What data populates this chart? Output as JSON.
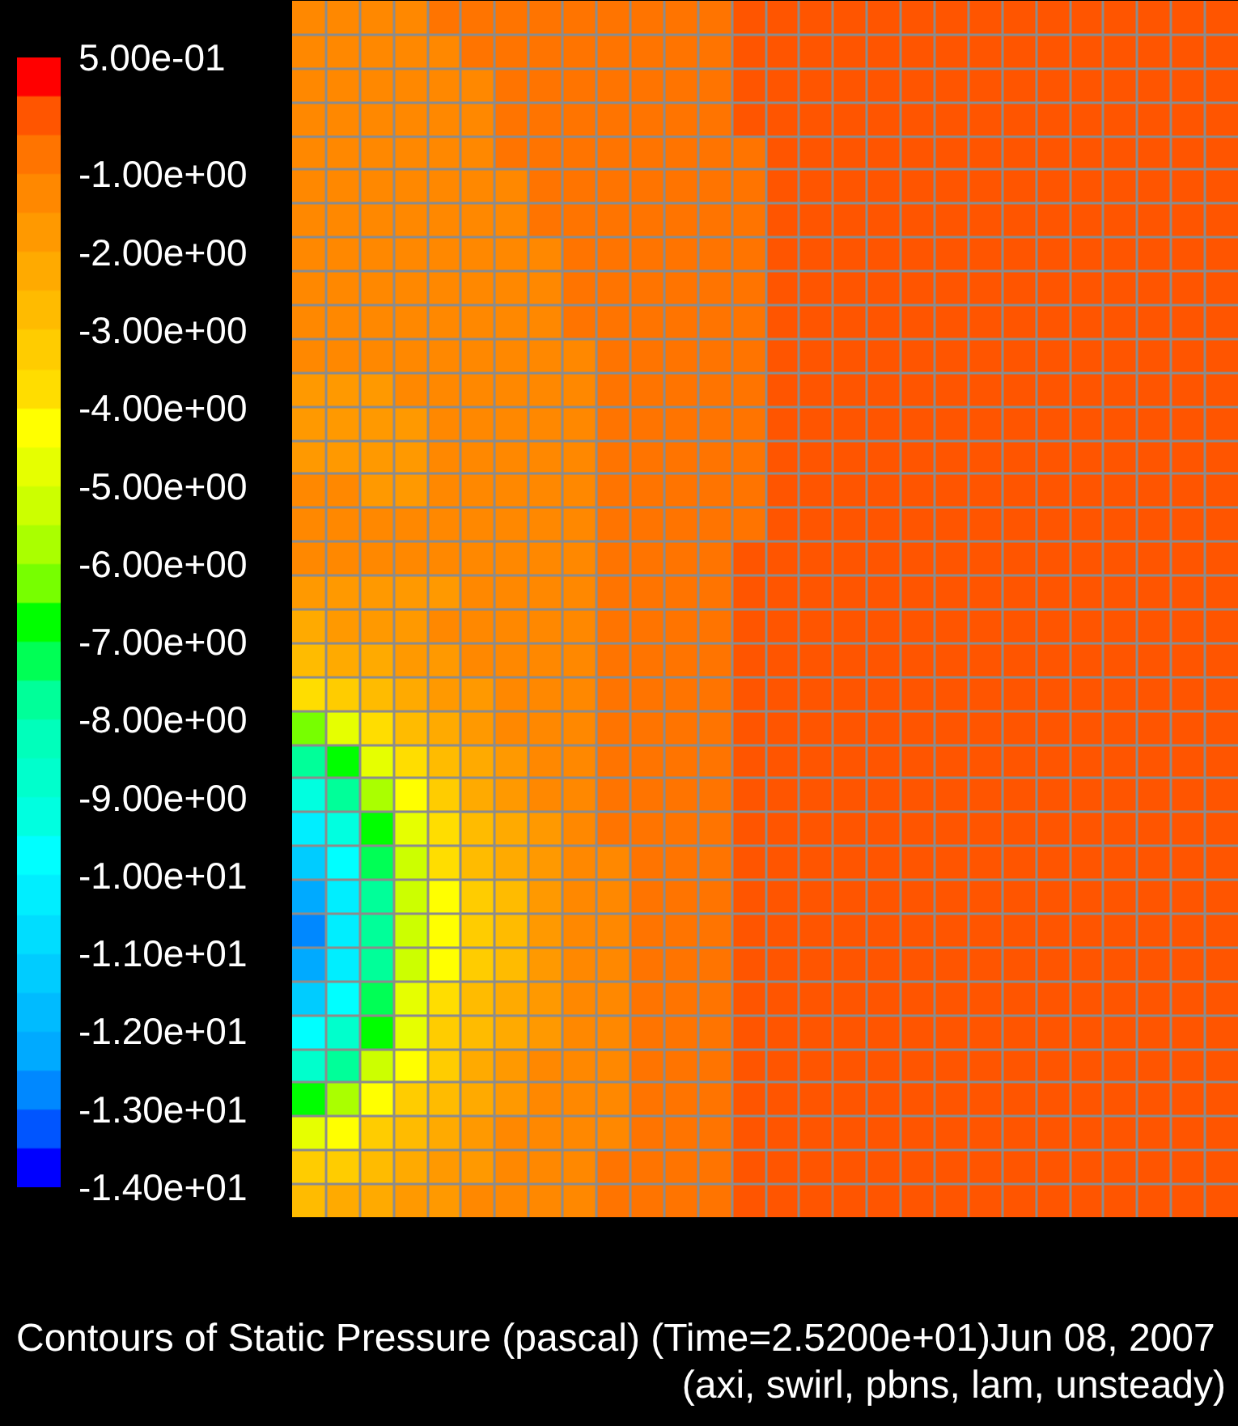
{
  "chart_data": {
    "type": "heatmap",
    "title": "Contours of Static Pressure (pascal)  (Time=2.5200e+01)Jun 08, 2007",
    "subtitle": "(axi, swirl, pbns, lam, unsteady)",
    "categories": [
      null,
      null,
      null,
      null,
      null,
      null,
      null,
      null,
      null,
      null,
      null,
      null,
      null,
      null,
      null,
      null,
      null,
      null,
      null,
      null,
      null,
      null,
      null,
      null,
      null,
      null,
      null,
      null
    ],
    "y_categories": [
      null,
      null,
      null,
      null,
      null,
      null,
      null,
      null,
      null,
      null,
      null,
      null,
      null,
      null,
      null,
      null,
      null,
      null,
      null,
      null,
      null,
      null,
      null,
      null,
      null,
      null,
      null,
      null,
      null,
      null,
      null,
      null,
      null,
      null,
      null,
      null
    ],
    "cells": [
      [
        -1.2,
        -1.2,
        -1.2,
        -1.2,
        -0.7,
        -0.7,
        -0.7,
        -0.7,
        -0.7,
        -0.7,
        -0.7,
        -0.7,
        -0.7,
        -0.2,
        -0.2,
        -0.2,
        -0.2,
        -0.2,
        -0.2,
        -0.2,
        -0.2,
        -0.2,
        -0.2,
        -0.2,
        -0.2,
        -0.2,
        -0.2,
        -0.2
      ],
      [
        -1.2,
        -1.2,
        -1.2,
        -1.2,
        -1.2,
        -0.7,
        -0.7,
        -0.7,
        -0.7,
        -0.7,
        -0.7,
        -0.7,
        -0.7,
        -0.2,
        -0.2,
        -0.2,
        -0.2,
        -0.2,
        -0.2,
        -0.2,
        -0.2,
        -0.2,
        -0.2,
        -0.2,
        -0.2,
        -0.2,
        -0.2,
        -0.2
      ],
      [
        -1.2,
        -1.2,
        -1.2,
        -1.2,
        -1.2,
        -1.2,
        -0.7,
        -0.7,
        -0.7,
        -0.7,
        -0.7,
        -0.7,
        -0.7,
        -0.2,
        -0.2,
        -0.2,
        -0.2,
        -0.2,
        -0.2,
        -0.2,
        -0.2,
        -0.2,
        -0.2,
        -0.2,
        -0.2,
        -0.2,
        -0.2,
        -0.2
      ],
      [
        -1.2,
        -1.2,
        -1.2,
        -1.2,
        -1.2,
        -1.2,
        -0.7,
        -0.7,
        -0.7,
        -0.7,
        -0.7,
        -0.7,
        -0.7,
        -0.2,
        -0.2,
        -0.2,
        -0.2,
        -0.2,
        -0.2,
        -0.2,
        -0.2,
        -0.2,
        -0.2,
        -0.2,
        -0.2,
        -0.2,
        -0.2,
        -0.2
      ],
      [
        -1.2,
        -1.2,
        -1.2,
        -1.2,
        -1.2,
        -1.2,
        -0.7,
        -0.7,
        -0.7,
        -0.7,
        -0.7,
        -0.7,
        -0.7,
        -0.7,
        -0.2,
        -0.2,
        -0.2,
        -0.2,
        -0.2,
        -0.2,
        -0.2,
        -0.2,
        -0.2,
        -0.2,
        -0.2,
        -0.2,
        -0.2,
        -0.2
      ],
      [
        -1.2,
        -1.2,
        -1.2,
        -1.2,
        -1.2,
        -1.2,
        -1.2,
        -0.7,
        -0.7,
        -0.7,
        -0.7,
        -0.7,
        -0.7,
        -0.7,
        -0.2,
        -0.2,
        -0.2,
        -0.2,
        -0.2,
        -0.2,
        -0.2,
        -0.2,
        -0.2,
        -0.2,
        -0.2,
        -0.2,
        -0.2,
        -0.2
      ],
      [
        -1.2,
        -1.2,
        -1.2,
        -1.2,
        -1.2,
        -1.2,
        -1.2,
        -0.7,
        -0.7,
        -0.7,
        -0.7,
        -0.7,
        -0.7,
        -0.7,
        -0.2,
        -0.2,
        -0.2,
        -0.2,
        -0.2,
        -0.2,
        -0.2,
        -0.2,
        -0.2,
        -0.2,
        -0.2,
        -0.2,
        -0.2,
        -0.2
      ],
      [
        -1.2,
        -1.2,
        -1.2,
        -1.2,
        -1.2,
        -1.2,
        -1.2,
        -1.2,
        -0.7,
        -0.7,
        -0.7,
        -0.7,
        -0.7,
        -0.7,
        -0.2,
        -0.2,
        -0.2,
        -0.2,
        -0.2,
        -0.2,
        -0.2,
        -0.2,
        -0.2,
        -0.2,
        -0.2,
        -0.2,
        -0.2,
        -0.2
      ],
      [
        -1.2,
        -1.2,
        -1.2,
        -1.2,
        -1.2,
        -1.2,
        -1.2,
        -1.2,
        -0.7,
        -0.7,
        -0.7,
        -0.7,
        -0.7,
        -0.7,
        -0.2,
        -0.2,
        -0.2,
        -0.2,
        -0.2,
        -0.2,
        -0.2,
        -0.2,
        -0.2,
        -0.2,
        -0.2,
        -0.2,
        -0.2,
        -0.2
      ],
      [
        -1.2,
        -1.2,
        -1.2,
        -1.2,
        -1.2,
        -1.2,
        -1.2,
        -1.2,
        -0.7,
        -0.7,
        -0.7,
        -0.7,
        -0.7,
        -0.7,
        -0.2,
        -0.2,
        -0.2,
        -0.2,
        -0.2,
        -0.2,
        -0.2,
        -0.2,
        -0.2,
        -0.2,
        -0.2,
        -0.2,
        -0.2,
        -0.2
      ],
      [
        -1.2,
        -1.2,
        -1.2,
        -1.2,
        -1.2,
        -1.2,
        -1.2,
        -1.2,
        -1.2,
        -0.7,
        -0.7,
        -0.7,
        -0.7,
        -0.7,
        -0.2,
        -0.2,
        -0.2,
        -0.2,
        -0.2,
        -0.2,
        -0.2,
        -0.2,
        -0.2,
        -0.2,
        -0.2,
        -0.2,
        -0.2,
        -0.2
      ],
      [
        -1.7,
        -1.7,
        -1.7,
        -1.2,
        -1.2,
        -1.2,
        -1.2,
        -1.2,
        -1.2,
        -0.7,
        -0.7,
        -0.7,
        -0.7,
        -0.7,
        -0.2,
        -0.2,
        -0.2,
        -0.2,
        -0.2,
        -0.2,
        -0.2,
        -0.2,
        -0.2,
        -0.2,
        -0.2,
        -0.2,
        -0.2,
        -0.2
      ],
      [
        -1.7,
        -1.7,
        -1.7,
        -1.7,
        -1.2,
        -1.2,
        -1.2,
        -1.2,
        -1.2,
        -0.7,
        -0.7,
        -0.7,
        -0.7,
        -0.7,
        -0.2,
        -0.2,
        -0.2,
        -0.2,
        -0.2,
        -0.2,
        -0.2,
        -0.2,
        -0.2,
        -0.2,
        -0.2,
        -0.2,
        -0.2,
        -0.2
      ],
      [
        -1.7,
        -1.7,
        -1.7,
        -1.7,
        -1.2,
        -1.2,
        -1.2,
        -1.2,
        -1.2,
        -0.7,
        -0.7,
        -0.7,
        -0.7,
        -0.7,
        -0.2,
        -0.2,
        -0.2,
        -0.2,
        -0.2,
        -0.2,
        -0.2,
        -0.2,
        -0.2,
        -0.2,
        -0.2,
        -0.2,
        -0.2,
        -0.2
      ],
      [
        -1.2,
        -1.2,
        -1.7,
        -1.7,
        -1.2,
        -1.2,
        -1.2,
        -1.2,
        -1.2,
        -0.7,
        -0.7,
        -0.7,
        -0.7,
        -0.7,
        -0.2,
        -0.2,
        -0.2,
        -0.2,
        -0.2,
        -0.2,
        -0.2,
        -0.2,
        -0.2,
        -0.2,
        -0.2,
        -0.2,
        -0.2,
        -0.2
      ],
      [
        -1.2,
        -1.2,
        -1.2,
        -1.2,
        -1.2,
        -1.2,
        -1.2,
        -1.2,
        -1.2,
        -0.7,
        -0.7,
        -0.7,
        -0.7,
        -0.7,
        -0.2,
        -0.2,
        -0.2,
        -0.2,
        -0.2,
        -0.2,
        -0.2,
        -0.2,
        -0.2,
        -0.2,
        -0.2,
        -0.2,
        -0.2,
        -0.2
      ],
      [
        -1.2,
        -1.2,
        -1.2,
        -1.2,
        -1.2,
        -1.2,
        -1.2,
        -1.2,
        -1.2,
        -0.7,
        -0.7,
        -0.7,
        -0.7,
        -0.2,
        -0.2,
        -0.2,
        -0.2,
        -0.2,
        -0.2,
        -0.2,
        -0.2,
        -0.2,
        -0.2,
        -0.2,
        -0.2,
        -0.2,
        -0.2,
        -0.2
      ],
      [
        -1.7,
        -1.7,
        -1.7,
        -1.7,
        -1.7,
        -1.2,
        -1.2,
        -1.2,
        -1.2,
        -0.7,
        -0.7,
        -0.7,
        -0.7,
        -0.2,
        -0.2,
        -0.2,
        -0.2,
        -0.2,
        -0.2,
        -0.2,
        -0.2,
        -0.2,
        -0.2,
        -0.2,
        -0.2,
        -0.2,
        -0.2,
        -0.2
      ],
      [
        -2.2,
        -1.7,
        -1.7,
        -1.7,
        -1.2,
        -1.2,
        -1.2,
        -1.2,
        -1.2,
        -0.7,
        -0.7,
        -0.7,
        -0.7,
        -0.2,
        -0.2,
        -0.2,
        -0.2,
        -0.2,
        -0.2,
        -0.2,
        -0.2,
        -0.2,
        -0.2,
        -0.2,
        -0.2,
        -0.2,
        -0.2,
        -0.2
      ],
      [
        -2.7,
        -2.2,
        -2.2,
        -1.7,
        -1.7,
        -1.2,
        -1.2,
        -1.2,
        -1.2,
        -0.7,
        -0.7,
        -0.7,
        -0.7,
        -0.2,
        -0.2,
        -0.2,
        -0.2,
        -0.2,
        -0.2,
        -0.2,
        -0.2,
        -0.2,
        -0.2,
        -0.2,
        -0.2,
        -0.2,
        -0.2,
        -0.2
      ],
      [
        -3.7,
        -3.2,
        -2.7,
        -2.2,
        -1.7,
        -1.7,
        -1.2,
        -1.2,
        -1.2,
        -0.7,
        -0.7,
        -0.7,
        -0.7,
        -0.2,
        -0.2,
        -0.2,
        -0.2,
        -0.2,
        -0.2,
        -0.2,
        -0.2,
        -0.2,
        -0.2,
        -0.2,
        -0.2,
        -0.2,
        -0.2,
        -0.2
      ],
      [
        -6.2,
        -4.7,
        -3.7,
        -2.7,
        -2.2,
        -1.7,
        -1.2,
        -1.2,
        -1.2,
        -0.7,
        -0.7,
        -0.7,
        -0.7,
        -0.2,
        -0.2,
        -0.2,
        -0.2,
        -0.2,
        -0.2,
        -0.2,
        -0.2,
        -0.2,
        -0.2,
        -0.2,
        -0.2,
        -0.2,
        -0.2,
        -0.2
      ],
      [
        -7.7,
        -6.7,
        -4.7,
        -3.7,
        -2.7,
        -2.2,
        -1.7,
        -1.2,
        -1.2,
        -0.7,
        -0.7,
        -0.7,
        -0.7,
        -0.2,
        -0.2,
        -0.2,
        -0.2,
        -0.2,
        -0.2,
        -0.2,
        -0.2,
        -0.2,
        -0.2,
        -0.2,
        -0.2,
        -0.2,
        -0.2,
        -0.2
      ],
      [
        -9.2,
        -7.7,
        -5.7,
        -4.2,
        -3.2,
        -2.2,
        -1.7,
        -1.2,
        -1.2,
        -0.7,
        -0.7,
        -0.7,
        -0.7,
        -0.2,
        -0.2,
        -0.2,
        -0.2,
        -0.2,
        -0.2,
        -0.2,
        -0.2,
        -0.2,
        -0.2,
        -0.2,
        -0.2,
        -0.2,
        -0.2,
        -0.2
      ],
      [
        -10.2,
        -9.2,
        -6.7,
        -4.7,
        -3.7,
        -2.7,
        -2.2,
        -1.7,
        -1.2,
        -0.7,
        -0.7,
        -0.7,
        -0.7,
        -0.2,
        -0.2,
        -0.2,
        -0.2,
        -0.2,
        -0.2,
        -0.2,
        -0.2,
        -0.2,
        -0.2,
        -0.2,
        -0.2,
        -0.2,
        -0.2,
        -0.2
      ],
      [
        -11.2,
        -9.7,
        -7.2,
        -5.2,
        -3.7,
        -2.7,
        -2.2,
        -1.7,
        -1.2,
        -1.2,
        -0.7,
        -0.7,
        -0.7,
        -0.2,
        -0.2,
        -0.2,
        -0.2,
        -0.2,
        -0.2,
        -0.2,
        -0.2,
        -0.2,
        -0.2,
        -0.2,
        -0.2,
        -0.2,
        -0.2,
        -0.2
      ],
      [
        -12.2,
        -10.2,
        -7.7,
        -5.2,
        -4.2,
        -3.2,
        -2.7,
        -1.7,
        -1.2,
        -1.2,
        -0.7,
        -0.7,
        -0.7,
        -0.2,
        -0.2,
        -0.2,
        -0.2,
        -0.2,
        -0.2,
        -0.2,
        -0.2,
        -0.2,
        -0.2,
        -0.2,
        -0.2,
        -0.2,
        -0.2,
        -0.2
      ],
      [
        -12.7,
        -10.2,
        -7.7,
        -5.2,
        -4.2,
        -3.2,
        -2.7,
        -1.7,
        -1.2,
        -1.2,
        -0.7,
        -0.7,
        -0.7,
        -0.2,
        -0.2,
        -0.2,
        -0.2,
        -0.2,
        -0.2,
        -0.2,
        -0.2,
        -0.2,
        -0.2,
        -0.2,
        -0.2,
        -0.2,
        -0.2,
        -0.2
      ],
      [
        -12.2,
        -10.2,
        -7.7,
        -5.2,
        -4.2,
        -3.2,
        -2.7,
        -1.7,
        -1.2,
        -1.2,
        -0.7,
        -0.7,
        -0.7,
        -0.2,
        -0.2,
        -0.2,
        -0.2,
        -0.2,
        -0.2,
        -0.2,
        -0.2,
        -0.2,
        -0.2,
        -0.2,
        -0.2,
        -0.2,
        -0.2,
        -0.2
      ],
      [
        -11.2,
        -9.7,
        -7.2,
        -4.7,
        -3.7,
        -2.7,
        -2.2,
        -1.7,
        -1.2,
        -1.2,
        -0.7,
        -0.7,
        -0.7,
        -0.2,
        -0.2,
        -0.2,
        -0.2,
        -0.2,
        -0.2,
        -0.2,
        -0.2,
        -0.2,
        -0.2,
        -0.2,
        -0.2,
        -0.2,
        -0.2,
        -0.2
      ],
      [
        -9.7,
        -8.7,
        -6.7,
        -4.7,
        -3.2,
        -2.7,
        -2.2,
        -1.7,
        -1.2,
        -1.2,
        -0.7,
        -0.7,
        -0.7,
        -0.2,
        -0.2,
        -0.2,
        -0.2,
        -0.2,
        -0.2,
        -0.2,
        -0.2,
        -0.2,
        -0.2,
        -0.2,
        -0.2,
        -0.2,
        -0.2,
        -0.2
      ],
      [
        -8.7,
        -7.7,
        -5.2,
        -4.2,
        -3.2,
        -2.2,
        -1.7,
        -1.2,
        -1.2,
        -1.2,
        -0.7,
        -0.7,
        -0.7,
        -0.2,
        -0.2,
        -0.2,
        -0.2,
        -0.2,
        -0.2,
        -0.2,
        -0.2,
        -0.2,
        -0.2,
        -0.2,
        -0.2,
        -0.2,
        -0.2,
        -0.2
      ],
      [
        -6.7,
        -5.7,
        -4.2,
        -3.2,
        -2.7,
        -2.2,
        -1.7,
        -1.2,
        -1.2,
        -1.2,
        -0.7,
        -0.7,
        -0.7,
        -0.2,
        -0.2,
        -0.2,
        -0.2,
        -0.2,
        -0.2,
        -0.2,
        -0.2,
        -0.2,
        -0.2,
        -0.2,
        -0.2,
        -0.2,
        -0.2,
        -0.2
      ],
      [
        -4.7,
        -4.2,
        -3.2,
        -2.7,
        -2.2,
        -1.7,
        -1.2,
        -1.2,
        -1.2,
        -1.2,
        -0.7,
        -0.7,
        -0.7,
        -0.2,
        -0.2,
        -0.2,
        -0.2,
        -0.2,
        -0.2,
        -0.2,
        -0.2,
        -0.2,
        -0.2,
        -0.2,
        -0.2,
        -0.2,
        -0.2,
        -0.2
      ],
      [
        -3.2,
        -3.2,
        -2.7,
        -2.2,
        -1.7,
        -1.7,
        -1.2,
        -1.2,
        -1.2,
        -0.7,
        -0.7,
        -0.7,
        -0.7,
        -0.2,
        -0.2,
        -0.2,
        -0.2,
        -0.2,
        -0.2,
        -0.2,
        -0.2,
        -0.2,
        -0.2,
        -0.2,
        -0.2,
        -0.2,
        -0.2,
        -0.2
      ],
      [
        -2.7,
        -2.2,
        -2.2,
        -1.7,
        -1.7,
        -1.2,
        -1.2,
        -1.2,
        -1.2,
        -0.7,
        -0.7,
        -0.7,
        -0.7,
        -0.2,
        -0.2,
        -0.2,
        -0.2,
        -0.2,
        -0.2,
        -0.2,
        -0.2,
        -0.2,
        -0.2,
        -0.2,
        -0.2,
        -0.2,
        -0.2,
        -0.2
      ]
    ],
    "clim": [
      -14,
      0.5
    ],
    "cticks": [
      {
        "value": 0.5,
        "label": "5.00e-01"
      },
      {
        "value": -1,
        "label": "-1.00e+00"
      },
      {
        "value": -2,
        "label": "-2.00e+00"
      },
      {
        "value": -3,
        "label": "-3.00e+00"
      },
      {
        "value": -4,
        "label": "-4.00e+00"
      },
      {
        "value": -5,
        "label": "-5.00e+00"
      },
      {
        "value": -6,
        "label": "-6.00e+00"
      },
      {
        "value": -7,
        "label": "-7.00e+00"
      },
      {
        "value": -8,
        "label": "-8.00e+00"
      },
      {
        "value": -9,
        "label": "-9.00e+00"
      },
      {
        "value": -10,
        "label": "-1.00e+01"
      },
      {
        "value": -11,
        "label": "-1.10e+01"
      },
      {
        "value": -12,
        "label": "-1.20e+01"
      },
      {
        "value": -13,
        "label": "-1.30e+01"
      },
      {
        "value": -14,
        "label": "-1.40e+01"
      }
    ],
    "colors": [
      "#0000ff",
      "#0055ff",
      "#0088ff",
      "#00aaff",
      "#00bbff",
      "#00ccff",
      "#00ddff",
      "#00eeff",
      "#00ffff",
      "#00ffe0",
      "#00ffcc",
      "#00ffbb",
      "#00ff99",
      "#00ff55",
      "#00ff00",
      "#77ff00",
      "#aaff00",
      "#ccff00",
      "#e6ff00",
      "#ffff00",
      "#ffdd00",
      "#ffcc00",
      "#ffbb00",
      "#ffaa00",
      "#ff9900",
      "#ff8800",
      "#ff7400",
      "#ff5500",
      "#ff0000"
    ],
    "grid": true,
    "tick_labels": false
  }
}
